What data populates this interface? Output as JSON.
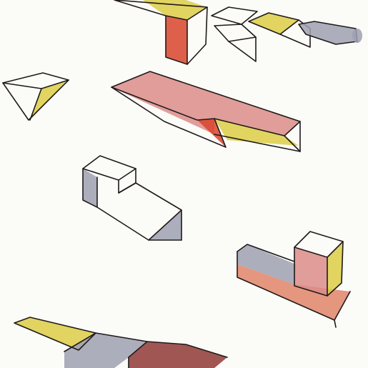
{
  "palette": {
    "paper": "#fbfbf8",
    "ink": "#1f1a1a",
    "red": "#d9442c",
    "pink": "#dc8c88",
    "yellow": "#dccd47",
    "gray": "#9ea0b2",
    "maroon": "#8f3a37",
    "orange": "#e1846a"
  },
  "shapes": [
    {
      "name": "sketch-block-top-center",
      "fill": "yellow"
    },
    {
      "name": "sketch-pipe-top-right",
      "fill": "gray"
    },
    {
      "name": "sketch-pyramid-left",
      "fill": "yellow"
    },
    {
      "name": "sketch-long-slab-center",
      "fill": "pink"
    },
    {
      "name": "sketch-l-block-middle",
      "fill": "gray"
    },
    {
      "name": "sketch-tower-block-right",
      "fill": "pink"
    },
    {
      "name": "sketch-bars-bottom",
      "fill": "maroon"
    }
  ]
}
